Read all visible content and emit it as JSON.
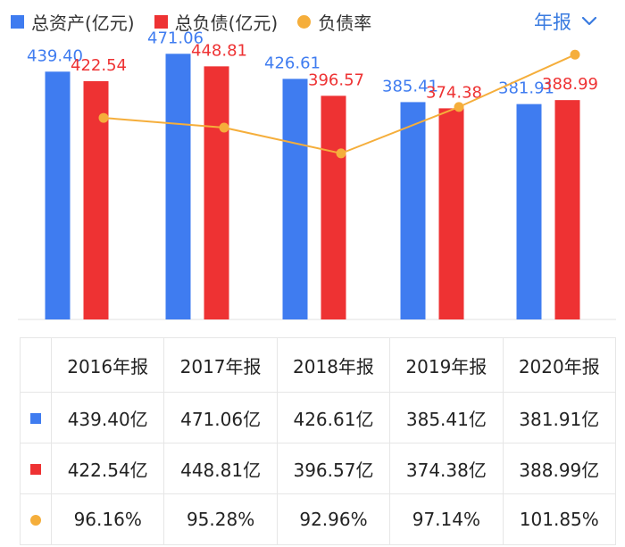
{
  "legend": {
    "assets_label": "总资产(亿元)",
    "liabilities_label": "总负债(亿元)",
    "ratio_label": "负债率"
  },
  "period_selector": {
    "label": "年报",
    "icon": "chevron-down-icon"
  },
  "colors": {
    "assets": "#3f7cf0",
    "liabilities": "#ee3233",
    "ratio": "#f5ae3b",
    "accent": "#3a7be0"
  },
  "chart_data": {
    "type": "bar",
    "categories": [
      "2016年报",
      "2017年报",
      "2018年报",
      "2019年报",
      "2020年报"
    ],
    "series": [
      {
        "name": "总资产(亿元)",
        "values": [
          439.4,
          471.06,
          426.61,
          385.41,
          381.91
        ],
        "labels": [
          "439.40",
          "471.06",
          "426.61",
          "385.41",
          "381.91"
        ]
      },
      {
        "name": "总负债(亿元)",
        "values": [
          422.54,
          448.81,
          396.57,
          374.38,
          388.99
        ],
        "labels": [
          "422.54",
          "448.81",
          "396.57",
          "374.38",
          "388.99"
        ]
      },
      {
        "name": "负债率",
        "type": "line",
        "values": [
          96.16,
          95.28,
          92.96,
          97.14,
          101.85
        ]
      }
    ],
    "ylim": [
      0,
      500
    ],
    "ratio_ylim": [
      78,
      103.4
    ],
    "grid": false
  },
  "table": {
    "header": [
      "2016年报",
      "2017年报",
      "2018年报",
      "2019年报",
      "2020年报"
    ],
    "rows": [
      {
        "marker": "assets",
        "cells": [
          "439.40亿",
          "471.06亿",
          "426.61亿",
          "385.41亿",
          "381.91亿"
        ]
      },
      {
        "marker": "liabilities",
        "cells": [
          "422.54亿",
          "448.81亿",
          "396.57亿",
          "374.38亿",
          "388.99亿"
        ]
      },
      {
        "marker": "ratio",
        "cells": [
          "96.16%",
          "95.28%",
          "92.96%",
          "97.14%",
          "101.85%"
        ]
      }
    ]
  }
}
